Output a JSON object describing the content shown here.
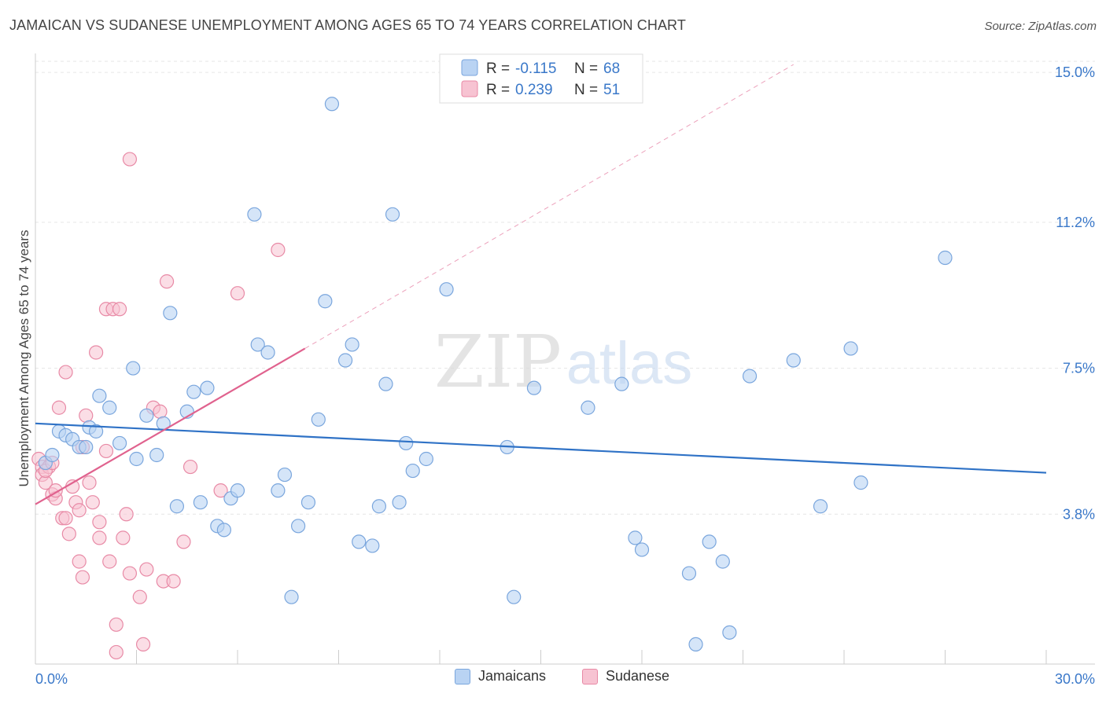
{
  "header": {
    "title": "JAMAICAN VS SUDANESE UNEMPLOYMENT AMONG AGES 65 TO 74 YEARS CORRELATION CHART",
    "source": "Source: ZipAtlas.com"
  },
  "watermark": {
    "zip": "ZIP",
    "atlas": "atlas"
  },
  "colors": {
    "jamaicans_fill": "#b9d3f3",
    "jamaicans_stroke": "#7aa6dd",
    "jamaicans_line": "#2f72c6",
    "sudanese_fill": "#f7c3d2",
    "sudanese_stroke": "#e88aa6",
    "sudanese_line": "#e0628e",
    "value_text": "#3a78c9"
  },
  "chart_data": {
    "type": "scatter",
    "title": "JAMAICAN VS SUDANESE UNEMPLOYMENT AMONG AGES 65 TO 74 YEARS CORRELATION CHART",
    "xlabel": "",
    "ylabel": "Unemployment Among Ages 65 to 74 years",
    "xlim": [
      0,
      30
    ],
    "ylim": [
      0,
      15.6
    ],
    "x_tick_labels": [
      "0.0%",
      "30.0%"
    ],
    "y_ticks": [
      3.8,
      7.5,
      11.2,
      15.0
    ],
    "y_tick_labels": [
      "3.8%",
      "7.5%",
      "11.2%",
      "15.0%"
    ],
    "grid": true,
    "legend_position": "top-center",
    "legend": [
      {
        "r_label": "R = ",
        "r_value": "-0.115",
        "n_label": "N = ",
        "n_value": "68"
      },
      {
        "r_label": "R = ",
        "r_value": "0.239",
        "n_label": "N = ",
        "n_value": "51"
      }
    ],
    "series": [
      {
        "name": "Jamaicans",
        "trend": {
          "x": [
            0.0,
            30.0
          ],
          "y": [
            6.1,
            4.85
          ]
        },
        "points": [
          [
            0.3,
            5.1
          ],
          [
            0.5,
            5.3
          ],
          [
            0.7,
            5.9
          ],
          [
            0.9,
            5.8
          ],
          [
            1.1,
            5.7
          ],
          [
            1.3,
            5.5
          ],
          [
            1.5,
            5.5
          ],
          [
            1.6,
            6.0
          ],
          [
            1.8,
            5.9
          ],
          [
            1.9,
            6.8
          ],
          [
            2.2,
            6.5
          ],
          [
            2.5,
            5.6
          ],
          [
            2.9,
            7.5
          ],
          [
            3.0,
            5.2
          ],
          [
            3.3,
            6.3
          ],
          [
            3.6,
            5.3
          ],
          [
            3.8,
            6.1
          ],
          [
            4.0,
            8.9
          ],
          [
            4.2,
            4.0
          ],
          [
            4.5,
            6.4
          ],
          [
            4.7,
            6.9
          ],
          [
            4.9,
            4.1
          ],
          [
            5.1,
            7.0
          ],
          [
            5.4,
            3.5
          ],
          [
            5.6,
            3.4
          ],
          [
            5.8,
            4.2
          ],
          [
            6.0,
            4.4
          ],
          [
            6.5,
            11.4
          ],
          [
            6.6,
            8.1
          ],
          [
            6.9,
            7.9
          ],
          [
            7.2,
            4.4
          ],
          [
            7.4,
            4.8
          ],
          [
            7.6,
            1.7
          ],
          [
            7.8,
            3.5
          ],
          [
            8.1,
            4.1
          ],
          [
            8.4,
            6.2
          ],
          [
            8.6,
            9.2
          ],
          [
            8.8,
            14.2
          ],
          [
            9.2,
            7.7
          ],
          [
            9.4,
            8.1
          ],
          [
            9.6,
            3.1
          ],
          [
            10.0,
            3.0
          ],
          [
            10.2,
            4.0
          ],
          [
            10.4,
            7.1
          ],
          [
            10.6,
            11.4
          ],
          [
            10.8,
            4.1
          ],
          [
            11.0,
            5.6
          ],
          [
            11.2,
            4.9
          ],
          [
            11.6,
            5.2
          ],
          [
            12.2,
            9.5
          ],
          [
            14.0,
            5.5
          ],
          [
            14.2,
            1.7
          ],
          [
            14.8,
            7.0
          ],
          [
            16.4,
            6.5
          ],
          [
            17.4,
            7.1
          ],
          [
            17.8,
            3.2
          ],
          [
            18.0,
            2.9
          ],
          [
            19.4,
            2.3
          ],
          [
            19.6,
            0.5
          ],
          [
            20.0,
            3.1
          ],
          [
            20.4,
            2.6
          ],
          [
            20.6,
            0.8
          ],
          [
            21.2,
            7.3
          ],
          [
            22.5,
            7.7
          ],
          [
            23.3,
            4.0
          ],
          [
            24.2,
            8.0
          ],
          [
            24.5,
            4.6
          ],
          [
            27.0,
            10.3
          ]
        ]
      },
      {
        "name": "Sudanese",
        "trend": {
          "x": [
            0.0,
            8.0
          ],
          "y": [
            4.05,
            8.0
          ]
        },
        "trend_extension": {
          "x": [
            8.0,
            22.5
          ],
          "y": [
            8.0,
            15.2
          ]
        },
        "points": [
          [
            0.1,
            5.2
          ],
          [
            0.2,
            5.0
          ],
          [
            0.2,
            4.8
          ],
          [
            0.3,
            4.6
          ],
          [
            0.4,
            5.0
          ],
          [
            0.5,
            4.3
          ],
          [
            0.6,
            4.2
          ],
          [
            0.7,
            6.5
          ],
          [
            0.8,
            3.7
          ],
          [
            0.9,
            3.7
          ],
          [
            0.9,
            7.4
          ],
          [
            1.0,
            3.3
          ],
          [
            1.1,
            4.5
          ],
          [
            1.2,
            4.1
          ],
          [
            1.3,
            2.6
          ],
          [
            1.3,
            3.9
          ],
          [
            1.4,
            5.5
          ],
          [
            1.5,
            6.3
          ],
          [
            1.6,
            4.6
          ],
          [
            1.7,
            4.1
          ],
          [
            1.8,
            7.9
          ],
          [
            1.9,
            3.2
          ],
          [
            1.9,
            3.6
          ],
          [
            2.1,
            5.4
          ],
          [
            2.1,
            9.0
          ],
          [
            2.2,
            2.6
          ],
          [
            2.3,
            9.0
          ],
          [
            2.4,
            1.0
          ],
          [
            2.4,
            0.3
          ],
          [
            2.5,
            9.0
          ],
          [
            2.6,
            3.2
          ],
          [
            2.7,
            3.8
          ],
          [
            2.8,
            2.3
          ],
          [
            2.8,
            12.8
          ],
          [
            3.1,
            1.7
          ],
          [
            3.2,
            0.5
          ],
          [
            3.3,
            2.4
          ],
          [
            3.5,
            6.5
          ],
          [
            3.7,
            6.4
          ],
          [
            3.8,
            2.1
          ],
          [
            3.9,
            9.7
          ],
          [
            4.1,
            2.1
          ],
          [
            4.4,
            3.1
          ],
          [
            4.6,
            5.0
          ],
          [
            5.5,
            4.4
          ],
          [
            6.0,
            9.4
          ],
          [
            7.2,
            10.5
          ],
          [
            0.3,
            4.9
          ],
          [
            0.5,
            5.1
          ],
          [
            0.6,
            4.4
          ],
          [
            1.4,
            2.2
          ]
        ]
      }
    ]
  }
}
